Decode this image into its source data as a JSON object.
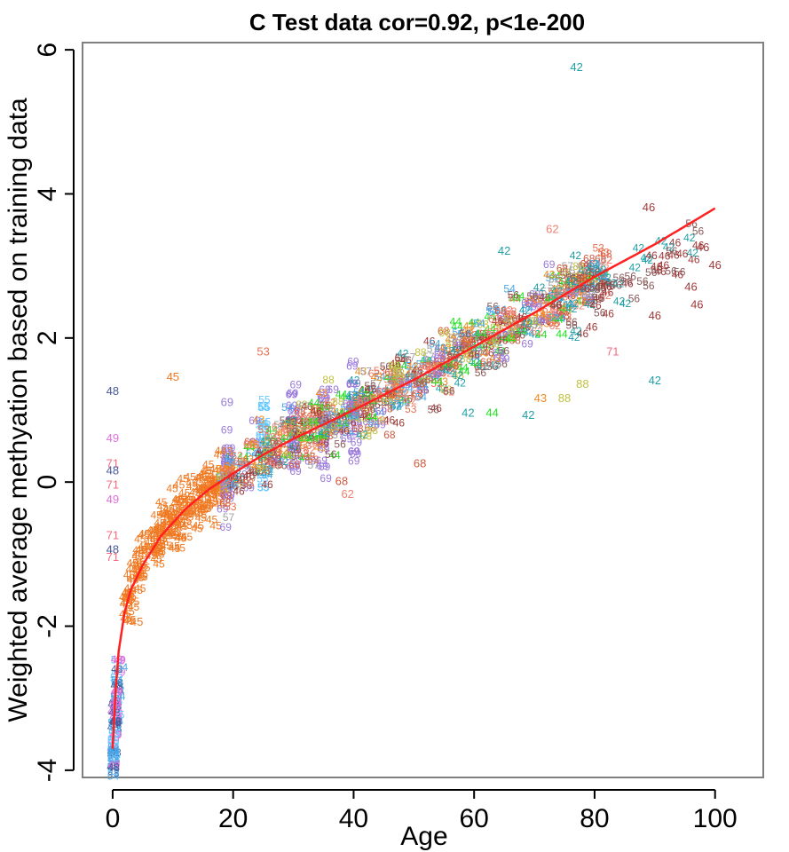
{
  "chart_data": {
    "type": "scatter",
    "title": "C Test data cor=0.92, p<1e-200",
    "xlabel": "Age",
    "ylabel": "Weighted average methyation based on training data",
    "xlim": [
      -5,
      108
    ],
    "ylim": [
      -4.1,
      6.1
    ],
    "xticks": [
      0,
      20,
      40,
      60,
      80,
      100
    ],
    "yticks": [
      -4,
      -2,
      0,
      2,
      4,
      6
    ],
    "xtick_labels": [
      "0",
      "20",
      "40",
      "60",
      "80",
      "100"
    ],
    "ytick_labels": [
      "-4",
      "-2",
      "0",
      "2",
      "4",
      "6"
    ],
    "grid": false,
    "legend": "none",
    "point_marker": "dataset id number",
    "colors": {
      "42": "#20a0a8",
      "43": "#f08a20",
      "44": "#20e020",
      "45": "#f07820",
      "46": "#a03a3a",
      "48": "#4a5a9a",
      "49": "#e070e0",
      "53": "#e87050",
      "54": "#4aa8e8",
      "55": "#66c8ff",
      "56": "#8a5a5a",
      "57": "#a0a0a0",
      "62": "#f08070",
      "68": "#d05a40",
      "69": "#9a7adc",
      "71": "#f06a80",
      "88": "#c0c040",
      "fit": "#ff2020"
    },
    "labeled_points": [
      {
        "label": "42",
        "x": 77,
        "y": 5.75
      },
      {
        "label": "46",
        "x": 89,
        "y": 3.8
      },
      {
        "label": "62",
        "x": 73,
        "y": 3.5
      },
      {
        "label": "42",
        "x": 65,
        "y": 3.2
      },
      {
        "label": "46",
        "x": 98,
        "y": 3.25
      },
      {
        "label": "46",
        "x": 100,
        "y": 3.0
      },
      {
        "label": "46",
        "x": 96,
        "y": 2.7
      },
      {
        "label": "46",
        "x": 97,
        "y": 2.45
      },
      {
        "label": "46",
        "x": 90,
        "y": 2.3
      },
      {
        "label": "71",
        "x": 83,
        "y": 1.8
      },
      {
        "label": "42",
        "x": 90,
        "y": 1.4
      },
      {
        "label": "45",
        "x": 10,
        "y": 1.45
      },
      {
        "label": "48",
        "x": 0,
        "y": 1.25
      },
      {
        "label": "53",
        "x": 25,
        "y": 1.8
      },
      {
        "label": "69",
        "x": 19,
        "y": 1.1
      },
      {
        "label": "49",
        "x": 0,
        "y": 0.6
      },
      {
        "label": "71",
        "x": 0,
        "y": 0.25
      },
      {
        "label": "48",
        "x": 0,
        "y": 0.15
      },
      {
        "label": "71",
        "x": 0,
        "y": -0.05
      },
      {
        "label": "49",
        "x": 0,
        "y": -0.25
      },
      {
        "label": "68",
        "x": 38,
        "y": 0.0
      },
      {
        "label": "62",
        "x": 39,
        "y": -0.18
      },
      {
        "label": "68",
        "x": 51,
        "y": 0.25
      },
      {
        "label": "44",
        "x": 63,
        "y": 0.95
      },
      {
        "label": "42",
        "x": 69,
        "y": 0.92
      },
      {
        "label": "42",
        "x": 59,
        "y": 0.95
      },
      {
        "label": "43",
        "x": 71,
        "y": 1.15
      },
      {
        "label": "88",
        "x": 75,
        "y": 1.15
      },
      {
        "label": "88",
        "x": 78,
        "y": 1.35
      },
      {
        "label": "71",
        "x": 0,
        "y": -0.75
      },
      {
        "label": "48",
        "x": 0,
        "y": -0.95
      },
      {
        "label": "71",
        "x": 0,
        "y": -1.05
      },
      {
        "label": "45",
        "x": 4,
        "y": -1.95
      }
    ],
    "fit_line": {
      "x": [
        0,
        0.5,
        1,
        2,
        3,
        5,
        8,
        12,
        16,
        20,
        25,
        30,
        40,
        50,
        60,
        70,
        80,
        90,
        100
      ],
      "y": [
        -3.7,
        -2.9,
        -2.35,
        -1.8,
        -1.5,
        -1.15,
        -0.75,
        -0.38,
        -0.1,
        0.12,
        0.38,
        0.6,
        1.0,
        1.42,
        1.88,
        2.35,
        2.85,
        3.3,
        3.8
      ]
    }
  }
}
